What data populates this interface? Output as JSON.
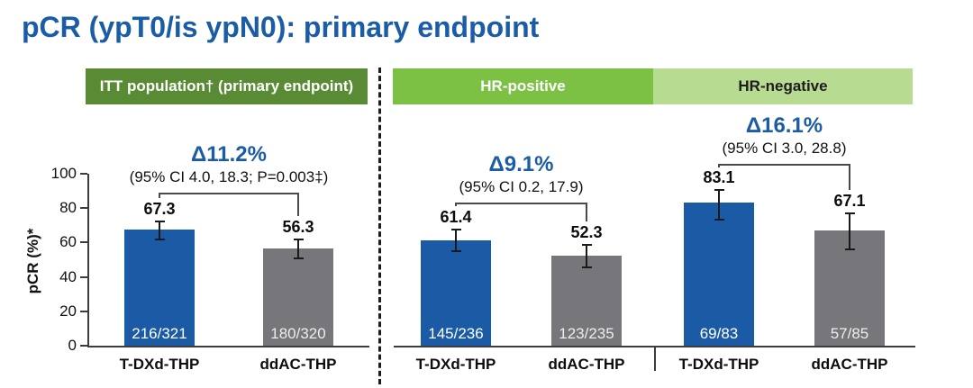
{
  "title": "pCR (ypT0/is ypN0): primary endpoint",
  "colors": {
    "title": "#1b5ca6",
    "bar_blue": "#1b5ba5",
    "bar_gray": "#77777b",
    "band_itt": "#598b34",
    "band_hr_positive": "#7cc144",
    "band_hr_negative": "#b7db90",
    "delta_text": "#1b5ca6",
    "axis": "#3c3c3c",
    "count_on_blue": "#ffffff",
    "count_on_gray": "#ededed"
  },
  "panel_headers": {
    "itt": "ITT population† (primary endpoint)",
    "hr_positive": "HR-positive",
    "hr_negative": "HR-negative"
  },
  "chart_data": {
    "type": "bar",
    "ylabel": "pCR (%)*",
    "ylim": [
      0,
      100
    ],
    "yticks": [
      0,
      20,
      40,
      60,
      80,
      100
    ],
    "arms": [
      "T-DXd-THP",
      "ddAC-THP"
    ],
    "groups": [
      {
        "panel": "ITT population† (primary endpoint)",
        "delta_label": "Δ11.2%",
        "ci_label": "(95% CI 4.0, 18.3; P=0.003‡)",
        "bars": [
          {
            "arm": "T-DXd-THP",
            "value": 67.3,
            "count": "216/321",
            "color": "blue",
            "err": [
              61.8,
              72.4
            ]
          },
          {
            "arm": "ddAC-THP",
            "value": 56.3,
            "count": "180/320",
            "color": "gray",
            "err": [
              50.6,
              61.8
            ]
          }
        ]
      },
      {
        "panel": "HR-positive",
        "delta_label": "Δ9.1%",
        "ci_label": "(95% CI 0.2, 17.9)",
        "bars": [
          {
            "arm": "T-DXd-THP",
            "value": 61.4,
            "count": "145/236",
            "color": "blue",
            "err": [
              54.9,
              67.7
            ]
          },
          {
            "arm": "ddAC-THP",
            "value": 52.3,
            "count": "123/235",
            "color": "gray",
            "err": [
              45.7,
              58.9
            ]
          }
        ]
      },
      {
        "panel": "HR-negative",
        "delta_label": "Δ16.1%",
        "ci_label": "(95% CI 3.0, 28.8)",
        "bars": [
          {
            "arm": "T-DXd-THP",
            "value": 83.1,
            "count": "69/83",
            "color": "blue",
            "err": [
              73.3,
              90.5
            ]
          },
          {
            "arm": "ddAC-THP",
            "value": 67.1,
            "count": "57/85",
            "color": "gray",
            "err": [
              56.0,
              76.9
            ]
          }
        ]
      }
    ]
  }
}
